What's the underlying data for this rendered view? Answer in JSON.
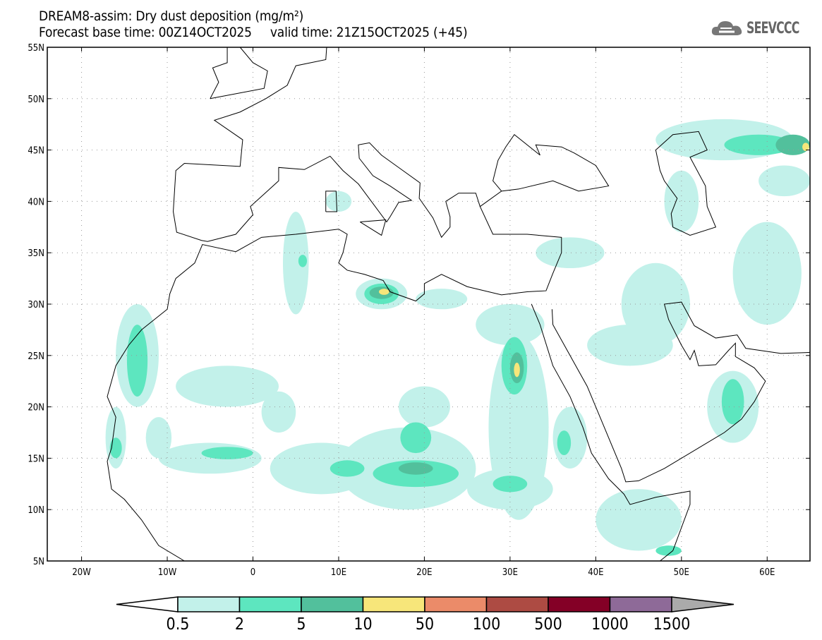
{
  "title": {
    "line1": "DREAM8-assim: Dry dust deposition (mg/m²)",
    "line2": "Forecast base time: 00Z14OCT2025     valid time: 21Z15OCT2025 (+45)"
  },
  "logo": {
    "text": "SEEVCCC",
    "icon": "cloud-icon"
  },
  "map": {
    "lon_range": [
      -24,
      65
    ],
    "lat_range": [
      5,
      55
    ],
    "lat_ticks": [
      {
        "v": 5,
        "l": "5N"
      },
      {
        "v": 10,
        "l": "10N"
      },
      {
        "v": 15,
        "l": "15N"
      },
      {
        "v": 20,
        "l": "20N"
      },
      {
        "v": 25,
        "l": "25N"
      },
      {
        "v": 30,
        "l": "30N"
      },
      {
        "v": 35,
        "l": "35N"
      },
      {
        "v": 40,
        "l": "40N"
      },
      {
        "v": 45,
        "l": "45N"
      },
      {
        "v": 50,
        "l": "50N"
      },
      {
        "v": 55,
        "l": "55N"
      }
    ],
    "lon_ticks": [
      {
        "v": -20,
        "l": "20W"
      },
      {
        "v": -10,
        "l": "10W"
      },
      {
        "v": 0,
        "l": "0"
      },
      {
        "v": 10,
        "l": "10E"
      },
      {
        "v": 20,
        "l": "20E"
      },
      {
        "v": 30,
        "l": "30E"
      },
      {
        "v": 40,
        "l": "40E"
      },
      {
        "v": 50,
        "l": "50E"
      },
      {
        "v": 60,
        "l": "60E"
      }
    ],
    "dust_regions": [
      [
        -13.5,
        25,
        2.5,
        5,
        0
      ],
      [
        -16,
        17,
        1.2,
        3,
        0
      ],
      [
        -5,
        15,
        6,
        1.5,
        0
      ],
      [
        8,
        14,
        6,
        2.5,
        0
      ],
      [
        18,
        14,
        8,
        4,
        0
      ],
      [
        31,
        18,
        3.5,
        9,
        0
      ],
      [
        30,
        12,
        5,
        2,
        0
      ],
      [
        37,
        17,
        2,
        3,
        0
      ],
      [
        56,
        20,
        3,
        3.5,
        0
      ],
      [
        45,
        9,
        5,
        3,
        0
      ],
      [
        5,
        34,
        1.5,
        5,
        0
      ],
      [
        15,
        31,
        3,
        1.5,
        0
      ],
      [
        22,
        30.5,
        3,
        1,
        0
      ],
      [
        30,
        28,
        4,
        2,
        0
      ],
      [
        -3,
        22,
        6,
        2,
        0
      ],
      [
        3,
        19.5,
        2,
        2,
        0
      ],
      [
        20,
        20,
        3,
        2,
        0
      ],
      [
        37,
        35,
        4,
        1.5,
        0
      ],
      [
        47,
        30,
        4,
        4,
        0
      ],
      [
        60,
        33,
        4,
        5,
        0
      ],
      [
        55,
        46,
        8,
        2,
        0
      ],
      [
        62,
        42,
        3,
        1.5,
        0
      ],
      [
        50,
        40,
        2,
        3,
        0
      ],
      [
        10,
        40,
        1.5,
        1,
        0
      ],
      [
        -11,
        17,
        1.5,
        2,
        0
      ],
      [
        44,
        26,
        5,
        2,
        0
      ],
      [
        -13.5,
        24.5,
        1.2,
        3.5,
        1
      ],
      [
        -16,
        16,
        0.7,
        1,
        1
      ],
      [
        -3,
        15.5,
        3,
        0.6,
        1
      ],
      [
        19,
        17,
        1.8,
        1.5,
        1
      ],
      [
        19,
        13.5,
        5,
        1.3,
        1
      ],
      [
        30.5,
        24,
        1.5,
        2.8,
        1
      ],
      [
        30,
        12.5,
        2,
        0.8,
        1
      ],
      [
        36.3,
        16.5,
        0.8,
        1.2,
        1
      ],
      [
        56,
        20.5,
        1.3,
        2.2,
        1
      ],
      [
        15,
        31,
        2,
        1,
        1
      ],
      [
        5.8,
        34.2,
        0.5,
        0.6,
        1
      ],
      [
        59,
        45.5,
        4,
        1,
        1
      ],
      [
        48.5,
        6,
        1.5,
        0.5,
        1
      ],
      [
        11,
        14,
        2,
        0.8,
        1
      ],
      [
        15,
        31.1,
        1.4,
        0.6,
        2
      ],
      [
        30.8,
        23.8,
        0.8,
        1.5,
        2
      ],
      [
        19,
        14,
        2,
        0.6,
        2
      ],
      [
        63,
        45.5,
        2,
        1,
        2
      ],
      [
        15.3,
        31.2,
        0.6,
        0.3,
        3
      ],
      [
        30.8,
        23.6,
        0.35,
        0.7,
        3
      ],
      [
        64.5,
        45.3,
        0.4,
        0.4,
        3
      ]
    ]
  },
  "colorbar": {
    "labels": [
      "0.5",
      "2",
      "5",
      "10",
      "50",
      "100",
      "500",
      "1000",
      "1500"
    ],
    "colors": [
      "#c2f1ea",
      "#5de6bf",
      "#52c09c",
      "#f7e67a",
      "#eb8b69",
      "#ad4b43",
      "#840026",
      "#8e6a98"
    ],
    "under_color": "#ffffff",
    "over_color": "#aaaaaa"
  }
}
